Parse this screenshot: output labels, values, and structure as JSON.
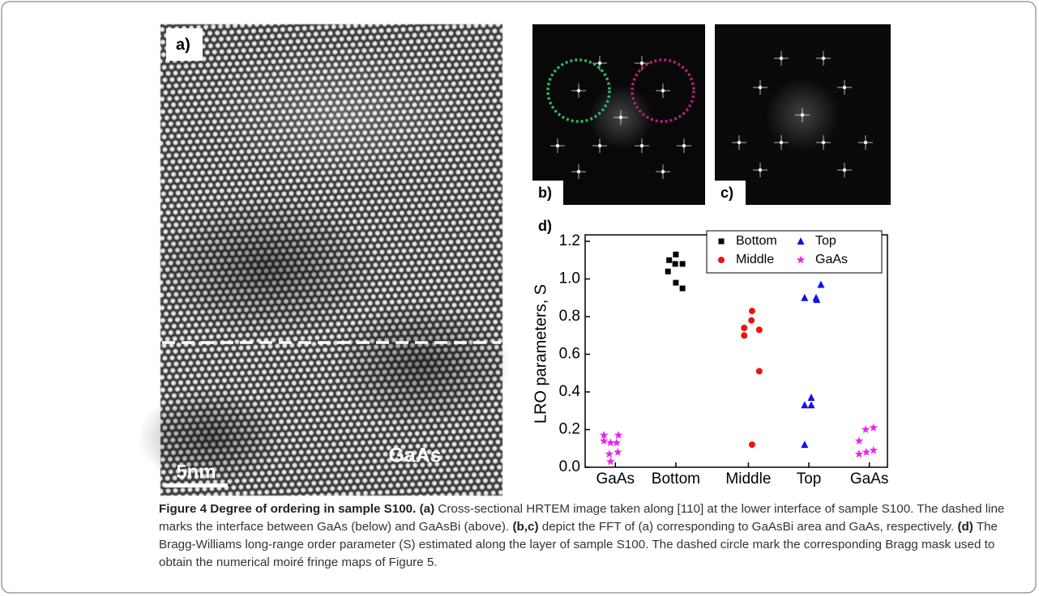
{
  "panels": {
    "a": {
      "label": "a)",
      "annotation": "GaAs",
      "scale_bar": "5nm"
    },
    "b": {
      "label": "b)"
    },
    "c": {
      "label": "c)"
    },
    "d": {
      "label": "d)"
    }
  },
  "chart_data": {
    "type": "scatter",
    "ylabel": "LRO parameters, S",
    "xlim": [
      0,
      5
    ],
    "xticks": [
      {
        "value": 0.5,
        "label": "GaAs"
      },
      {
        "value": 1.5,
        "label": "Bottom"
      },
      {
        "value": 2.7,
        "label": "Middle"
      },
      {
        "value": 3.7,
        "label": "Top"
      },
      {
        "value": 4.7,
        "label": "GaAs"
      }
    ],
    "ylim": [
      0,
      1.2
    ],
    "yticks": [
      {
        "value": 0,
        "label": "0.0"
      },
      0.2,
      0.4,
      0.6,
      0.8,
      {
        "value": 1,
        "label": "1.0"
      },
      1.2
    ],
    "legend": "upper right",
    "series": [
      {
        "name": "Bottom",
        "color": "#000000",
        "marker": "square",
        "x": [
          1.5,
          1.39,
          1.61,
          1.49,
          1.37,
          1.5,
          1.61
        ],
        "y": [
          1.13,
          1.1,
          1.08,
          1.08,
          1.04,
          0.98,
          0.95
        ]
      },
      {
        "name": "Middle",
        "color": "#ee1111",
        "marker": "circle",
        "x": [
          2.63,
          2.63,
          2.76,
          2.75,
          2.88,
          2.88,
          2.76
        ],
        "y": [
          0.74,
          0.7,
          0.83,
          0.78,
          0.73,
          0.51,
          0.12
        ]
      },
      {
        "name": "Top",
        "color": "#1111ee",
        "marker": "triangle",
        "x": [
          3.63,
          3.9,
          3.82,
          3.83,
          3.74,
          3.63,
          3.74,
          3.63
        ],
        "y": [
          0.9,
          0.97,
          0.9,
          0.89,
          0.37,
          0.33,
          0.33,
          0.12
        ]
      },
      {
        "name": "GaAs",
        "color": "#ee22ee",
        "marker": "star",
        "x": [
          0.31,
          0.31,
          0.42,
          0.55,
          0.52,
          0.4,
          0.54,
          0.42,
          4.64,
          4.77,
          4.53,
          4.53,
          4.65,
          4.77
        ],
        "y": [
          0.17,
          0.14,
          0.13,
          0.17,
          0.13,
          0.07,
          0.08,
          0.03,
          0.2,
          0.21,
          0.14,
          0.07,
          0.08,
          0.09
        ]
      }
    ]
  },
  "caption": {
    "title": "Figure 4 Degree of ordering in sample S100.",
    "segments": [
      {
        "ref": "(a)",
        "text": "Cross-sectional HRTEM image taken along [110] at the lower interface of sample S100. The dashed line marks the interface between GaAs (below) and GaAsBi (above)."
      },
      {
        "ref": "(b,c)",
        "text": "depict the FFT of (a) corresponding to GaAsBi area and GaAs, respectively."
      },
      {
        "ref": "(d)",
        "text": "The Bragg-Williams long-range order parameter (S) estimated along the layer of sample S100. The dashed circle mark the corresponding Bragg mask used to obtain the numerical moiré fringe maps of Figure 5."
      }
    ]
  }
}
